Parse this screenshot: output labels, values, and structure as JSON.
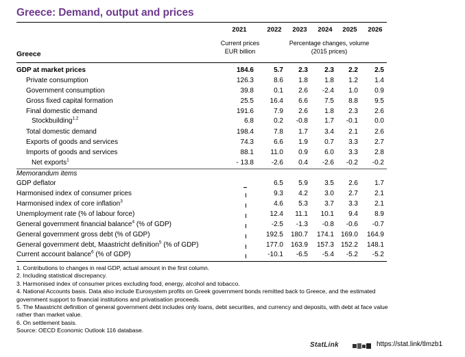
{
  "title": "Greece: Demand, output and prices",
  "country": "Greece",
  "years": [
    "2021",
    "2022",
    "2023",
    "2024",
    "2025",
    "2026"
  ],
  "header_notes": {
    "current_prices_line1": "Current prices",
    "current_prices_line2": "EUR billion",
    "pct_line1": "Percentage changes, volume",
    "pct_line2": "(2015 prices)"
  },
  "rows": [
    {
      "label": "GDP at market prices",
      "sup": "",
      "values": [
        "184.6",
        "5.7",
        "2.3",
        "2.3",
        "2.2",
        "2.5"
      ]
    },
    {
      "label": "Private consumption",
      "sup": "",
      "values": [
        "126.3",
        "8.6",
        "1.8",
        "1.8",
        "1.2",
        "1.4"
      ]
    },
    {
      "label": "Government consumption",
      "sup": "",
      "values": [
        "39.8",
        "0.1",
        "2.6",
        "-2.4",
        "1.0",
        "0.9"
      ]
    },
    {
      "label": "Gross fixed capital formation",
      "sup": "",
      "values": [
        "25.5",
        "16.4",
        "6.6",
        "7.5",
        "8.8",
        "9.5"
      ]
    },
    {
      "label": "Final domestic demand",
      "sup": "",
      "values": [
        "191.6",
        "7.9",
        "2.6",
        "1.8",
        "2.3",
        "2.6"
      ]
    },
    {
      "label": "Stockbuilding",
      "sup": "1,2",
      "values": [
        "6.8",
        "0.2",
        "-0.8",
        "1.7",
        "-0.1",
        "0.0"
      ]
    },
    {
      "label": "Total domestic demand",
      "sup": "",
      "values": [
        "198.4",
        "7.8",
        "1.7",
        "3.4",
        "2.1",
        "2.6"
      ]
    },
    {
      "label": "Exports of goods and services",
      "sup": "",
      "values": [
        "74.3",
        "6.6",
        "1.9",
        "0.7",
        "3.3",
        "2.7"
      ]
    },
    {
      "label": "Imports of goods and services",
      "sup": "",
      "values": [
        "88.1",
        "11.0",
        "0.9",
        "6.0",
        "3.3",
        "2.8"
      ]
    },
    {
      "label": "Net exports",
      "sup": "1",
      "values": [
        "- 13.8",
        "-2.6",
        "0.4",
        "-2.6",
        "-0.2",
        "-0.2"
      ]
    }
  ],
  "memo_label": "Memorandum items",
  "memo_rows": [
    {
      "label": "GDP deflator",
      "sup": "",
      "values": [
        "6.5",
        "5.9",
        "3.5",
        "2.6",
        "1.7"
      ]
    },
    {
      "label": "Harmonised index of consumer prices",
      "sup": "",
      "values": [
        "9.3",
        "4.2",
        "3.0",
        "2.7",
        "2.1"
      ]
    },
    {
      "label": "Harmonised index of core inflation",
      "sup": "3",
      "values": [
        "4.6",
        "5.3",
        "3.7",
        "3.3",
        "2.1"
      ]
    },
    {
      "label": "Unemployment rate (% of labour force)",
      "sup": "",
      "values": [
        "12.4",
        "11.1",
        "10.1",
        "9.4",
        "8.9"
      ]
    },
    {
      "label": "General government financial balance",
      "sup": "4",
      "suffix": " (% of GDP)",
      "values": [
        "-2.5",
        "-1.3",
        "-0.8",
        "-0.6",
        "-0.7"
      ]
    },
    {
      "label": "General government gross debt (% of GDP)",
      "sup": "",
      "values": [
        "192.5",
        "180.7",
        "174.1",
        "169.0",
        "164.9"
      ]
    },
    {
      "label": "General government debt, Maastricht definition",
      "sup": "5",
      "suffix": " (% of GDP)",
      "values": [
        "177.0",
        "163.9",
        "157.3",
        "152.2",
        "148.1"
      ]
    },
    {
      "label": "Current account balance",
      "sup": "6",
      "suffix": " (% of GDP)",
      "values": [
        "-10.1",
        "-6.5",
        "-5.4",
        "-5.2",
        "-5.2"
      ]
    }
  ],
  "notes": [
    "1. Contributions to changes in real GDP, actual amount in the first column.",
    "2. Including statistical discrepancy.",
    "3. Harmonised index of consumer prices excluding food, energy, alcohol and tobacco.",
    "4. National Accounts basis. Data also include Eurosystem profits on Greek government bonds remitted back to Greece, and the estimated government support to financial institutions and privatisation proceeds.",
    "5. The Maastricht definition of general government debt includes only loans, debt securities, and currency and deposits, with debt at face value rather than market value.",
    "6. On settlement basis.",
    "Source: OECD Economic Outlook 116 database."
  ],
  "statlink": {
    "label": "StatLink",
    "url": "https://stat.link/tlmzb1"
  }
}
